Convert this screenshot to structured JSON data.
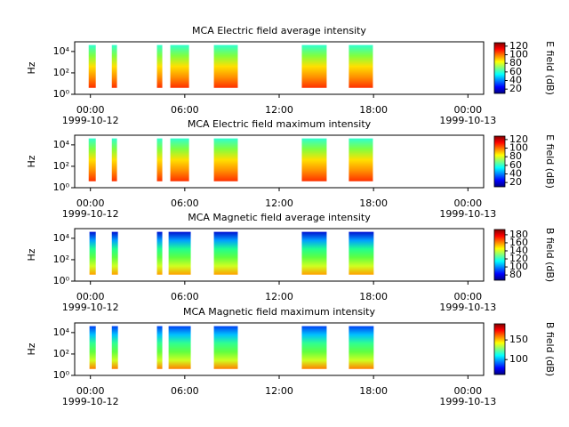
{
  "chart_data": [
    {
      "type": "spectrogram",
      "title": "MCA  Electric field average intensity",
      "ylabel": "Hz",
      "colorbar_label": "E field (dB)",
      "colormap": "jet",
      "xlim": [
        -1,
        25
      ],
      "xticks": [
        {
          "value": 0,
          "label": "00:00"
        },
        {
          "value": 6,
          "label": "06:00"
        },
        {
          "value": 12,
          "label": "12:00"
        },
        {
          "value": 18,
          "label": "18:00"
        },
        {
          "value": 24,
          "label": "00:00"
        }
      ],
      "dates": [
        {
          "value": 0,
          "label": "1999-10-12"
        },
        {
          "value": 24,
          "label": "1999-10-13"
        }
      ],
      "log_y": true,
      "ylim": [
        1,
        80000
      ],
      "yticks": [
        {
          "value": 1,
          "label": "10⁰"
        },
        {
          "value": 100,
          "label": "10²"
        },
        {
          "value": 10000,
          "label": "10⁴"
        }
      ],
      "clim": [
        10,
        128
      ],
      "cticks": [
        20,
        40,
        60,
        80,
        100,
        120
      ],
      "freq_range": [
        4,
        40000
      ],
      "segments": [
        [
          -0.11,
          0.34
        ],
        [
          1.36,
          1.69
        ],
        [
          4.23,
          4.57
        ],
        [
          5.08,
          6.27
        ],
        [
          7.85,
          9.37
        ],
        [
          13.44,
          15.02
        ],
        [
          16.43,
          17.96
        ]
      ],
      "segment_gradient": [
        "#30ffd0",
        "#80ff40",
        "#ffe000",
        "#ff9000",
        "#ff3000"
      ]
    },
    {
      "type": "spectrogram",
      "title": "MCA  Electric field maximum intensity",
      "ylabel": "Hz",
      "colorbar_label": "E field (dB)",
      "colormap": "jet",
      "xlim": [
        -1,
        25
      ],
      "xticks": [
        {
          "value": 0,
          "label": "00:00"
        },
        {
          "value": 6,
          "label": "06:00"
        },
        {
          "value": 12,
          "label": "12:00"
        },
        {
          "value": 18,
          "label": "18:00"
        },
        {
          "value": 24,
          "label": "00:00"
        }
      ],
      "dates": [
        {
          "value": 0,
          "label": "1999-10-12"
        },
        {
          "value": 24,
          "label": "1999-10-13"
        }
      ],
      "log_y": true,
      "ylim": [
        1,
        80000
      ],
      "yticks": [
        {
          "value": 1,
          "label": "10⁰"
        },
        {
          "value": 100,
          "label": "10²"
        },
        {
          "value": 10000,
          "label": "10⁴"
        }
      ],
      "clim": [
        10,
        128
      ],
      "cticks": [
        20,
        40,
        60,
        80,
        100,
        120
      ],
      "freq_range": [
        4,
        40000
      ],
      "segments": [
        [
          -0.11,
          0.34
        ],
        [
          1.36,
          1.69
        ],
        [
          4.23,
          4.57
        ],
        [
          5.08,
          6.27
        ],
        [
          7.85,
          9.37
        ],
        [
          13.44,
          15.02
        ],
        [
          16.43,
          17.96
        ]
      ],
      "segment_gradient": [
        "#30ffd0",
        "#80ff40",
        "#ffe000",
        "#ff9000",
        "#ff3000"
      ]
    },
    {
      "type": "spectrogram",
      "title": "MCA  Magnetic field average intensity",
      "ylabel": "Hz",
      "colorbar_label": "B field (dB)",
      "colormap": "jet",
      "xlim": [
        -1,
        25
      ],
      "xticks": [
        {
          "value": 0,
          "label": "00:00"
        },
        {
          "value": 6,
          "label": "06:00"
        },
        {
          "value": 12,
          "label": "12:00"
        },
        {
          "value": 18,
          "label": "18:00"
        },
        {
          "value": 24,
          "label": "00:00"
        }
      ],
      "dates": [
        {
          "value": 0,
          "label": "1999-10-12"
        },
        {
          "value": 24,
          "label": "1999-10-13"
        }
      ],
      "log_y": true,
      "ylim": [
        1,
        80000
      ],
      "yticks": [
        {
          "value": 1,
          "label": "10⁰"
        },
        {
          "value": 100,
          "label": "10²"
        },
        {
          "value": 10000,
          "label": "10⁴"
        }
      ],
      "clim": [
        67,
        193
      ],
      "cticks": [
        80,
        100,
        120,
        140,
        160,
        180
      ],
      "freq_range": [
        4,
        40000
      ],
      "segments": [
        [
          -0.06,
          0.34
        ],
        [
          1.36,
          1.75
        ],
        [
          4.23,
          4.57
        ],
        [
          4.97,
          6.38
        ],
        [
          7.85,
          9.37
        ],
        [
          13.44,
          15.02
        ],
        [
          16.43,
          18.01
        ]
      ],
      "segment_gradient": [
        "#0010d0",
        "#00a0ff",
        "#20ff90",
        "#60ff40",
        "#d0ff20",
        "#ffa000"
      ]
    },
    {
      "type": "spectrogram",
      "title": "MCA  Magnetic field maximum intensity",
      "ylabel": "Hz",
      "colorbar_label": "B field (dB)",
      "colormap": "jet",
      "xlim": [
        -1,
        25
      ],
      "xticks": [
        {
          "value": 0,
          "label": "00:00"
        },
        {
          "value": 6,
          "label": "06:00"
        },
        {
          "value": 12,
          "label": "12:00"
        },
        {
          "value": 18,
          "label": "18:00"
        },
        {
          "value": 24,
          "label": "00:00"
        }
      ],
      "dates": [
        {
          "value": 0,
          "label": "1999-10-12"
        },
        {
          "value": 24,
          "label": "1999-10-13"
        }
      ],
      "log_y": true,
      "ylim": [
        1,
        80000
      ],
      "yticks": [
        {
          "value": 1,
          "label": "10⁰"
        },
        {
          "value": 100,
          "label": "10²"
        },
        {
          "value": 10000,
          "label": "10⁴"
        }
      ],
      "clim": [
        62,
        191
      ],
      "cticks": [
        100,
        150
      ],
      "freq_range": [
        4,
        40000
      ],
      "segments": [
        [
          -0.06,
          0.34
        ],
        [
          1.36,
          1.75
        ],
        [
          4.23,
          4.57
        ],
        [
          4.97,
          6.38
        ],
        [
          7.85,
          9.37
        ],
        [
          13.44,
          15.02
        ],
        [
          16.43,
          18.01
        ]
      ],
      "segment_gradient": [
        "#0040f0",
        "#00c0ff",
        "#30ff90",
        "#60ff40",
        "#d0ff20",
        "#ff8000"
      ]
    }
  ]
}
